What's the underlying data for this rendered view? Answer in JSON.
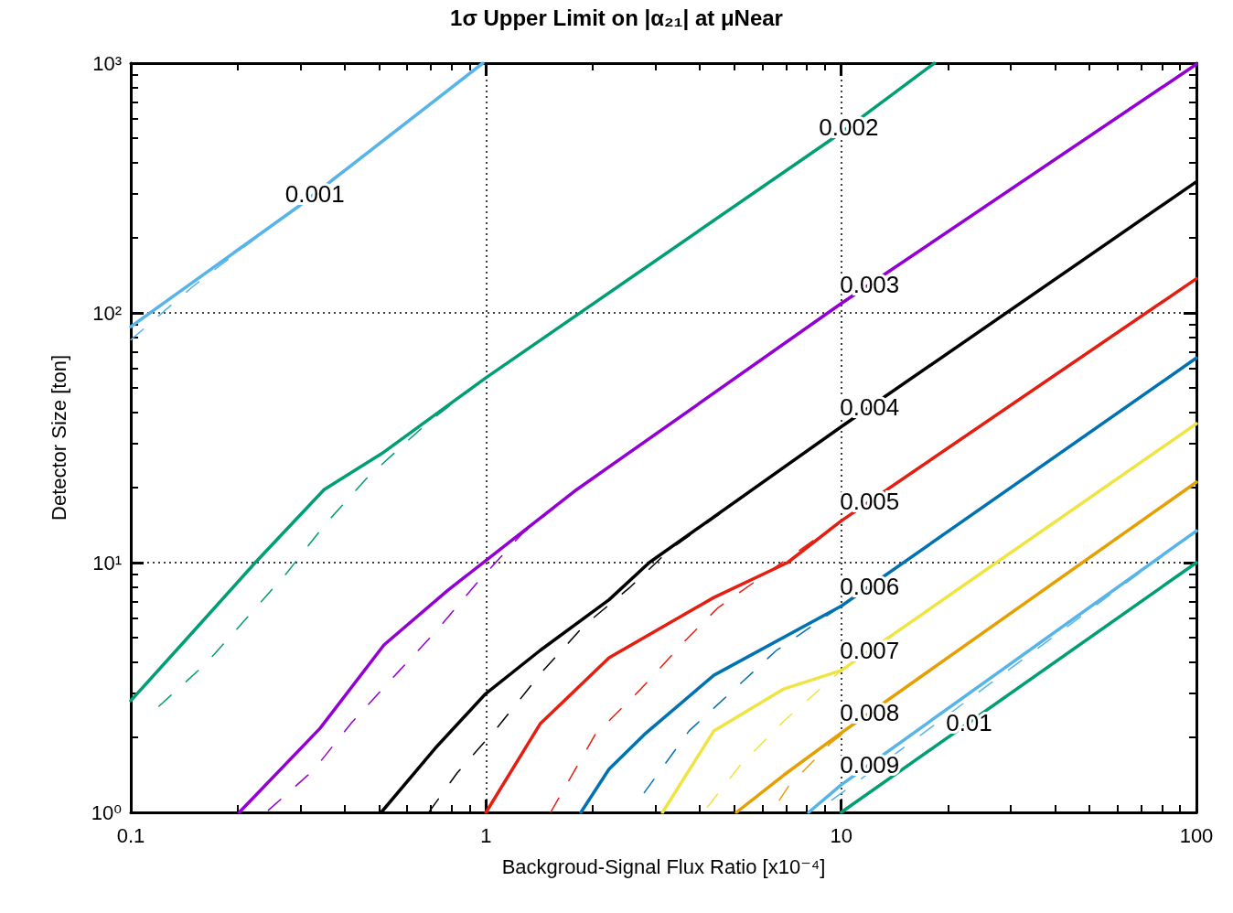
{
  "chart_data": {
    "type": "line",
    "title": "1σ Upper Limit on |α₂₁| at μNear",
    "xlabel": "Backgroud-Signal Flux Ratio [x10⁻⁴]",
    "ylabel": "Detector Size [ton]",
    "log": "xy",
    "xlim": [
      0.1,
      100
    ],
    "xticks": [
      0.1,
      1,
      10,
      100
    ],
    "ylim": [
      1,
      1000
    ],
    "yticks": [
      {
        "value": 1,
        "label": "10⁰"
      },
      {
        "value": 10,
        "label": "10¹"
      },
      {
        "value": 100,
        "label": "10²"
      },
      {
        "value": 1000,
        "label": "10³"
      }
    ],
    "grid": true,
    "legend": false,
    "marker": "none",
    "line_style": "solid",
    "series": [
      {
        "name": "0.001",
        "color": "#56b4e9",
        "x": [
          0.1,
          0.3,
          0.98
        ],
        "values": [
          88,
          270,
          1000
        ]
      },
      {
        "color": "#56b4e9",
        "line_style": "dashed",
        "x": [
          0.1,
          0.15,
          0.98
        ],
        "values": [
          78,
          128,
          1000
        ]
      },
      {
        "name": "0.002",
        "color": "#009e73",
        "x": [
          0.1,
          0.15,
          0.224,
          0.35,
          0.516,
          1,
          10,
          18.3
        ],
        "values": [
          2.8,
          5.3,
          10,
          19.6,
          27.7,
          55,
          527,
          1000
        ]
      },
      {
        "color": "#009e73",
        "line_style": "dashed",
        "x": [
          0.12,
          0.162,
          0.212,
          0.275,
          0.352,
          0.459,
          0.613,
          0.69,
          1,
          10,
          18.3
        ],
        "values": [
          2.66,
          3.92,
          6.0,
          9.1,
          14.2,
          21.6,
          31.5,
          36.6,
          55,
          527,
          1000
        ]
      },
      {
        "name": "0.003",
        "color": "#9400d3",
        "x": [
          0.202,
          0.341,
          0.516,
          0.78,
          1,
          1.8,
          10,
          100
        ],
        "values": [
          1,
          2.17,
          4.68,
          7.74,
          10.2,
          19.6,
          109,
          990
        ]
      },
      {
        "color": "#9400d3",
        "line_style": "dashed",
        "x": [
          0.244,
          0.326,
          0.42,
          0.571,
          0.719,
          0.937,
          1.26,
          1.8,
          10,
          100
        ],
        "values": [
          1.02,
          1.47,
          2.3,
          3.7,
          5.26,
          8.2,
          13.0,
          19.6,
          109,
          990
        ]
      },
      {
        "name": "0.004",
        "color": "#000000",
        "x": [
          0.507,
          0.718,
          0.994,
          1.42,
          2.22,
          2.88,
          10,
          100
        ],
        "values": [
          1,
          1.8,
          2.97,
          4.45,
          7.1,
          10,
          35,
          335
        ]
      },
      {
        "color": "#000000",
        "line_style": "dashed",
        "x": [
          0.69,
          0.83,
          1.08,
          1.44,
          1.89,
          2.54,
          3.3,
          10,
          100
        ],
        "values": [
          1,
          1.44,
          2.2,
          3.66,
          5.6,
          7.95,
          11.3,
          35,
          335
        ]
      },
      {
        "name": "0.005",
        "color": "#e51e10",
        "x": [
          1,
          1.42,
          2.22,
          4.38,
          7.06,
          10,
          100
        ],
        "values": [
          1,
          2.26,
          4.16,
          7.25,
          10,
          14.7,
          137
        ]
      },
      {
        "color": "#e51e10",
        "line_style": "dashed",
        "x": [
          1.52,
          2.03,
          2.73,
          3.58,
          4.5,
          10,
          100
        ],
        "values": [
          1.0,
          2.05,
          3.12,
          4.76,
          6.6,
          14.7,
          137
        ]
      },
      {
        "name": "0.006",
        "color": "#0072b2",
        "x": [
          1.85,
          2.22,
          2.79,
          4.38,
          10,
          100
        ],
        "values": [
          1,
          1.49,
          2.05,
          3.54,
          6.7,
          66
        ]
      },
      {
        "color": "#0072b2",
        "line_style": "dashed",
        "x": [
          2.79,
          3.73,
          4.95,
          6.57,
          10,
          100
        ],
        "values": [
          1.2,
          2.12,
          3.07,
          4.45,
          6.7,
          66
        ]
      },
      {
        "name": "0.007",
        "color": "#f0e442",
        "x": [
          3.14,
          4.38,
          6.89,
          10,
          100
        ],
        "values": [
          1,
          2.12,
          3.12,
          3.7,
          36
        ]
      },
      {
        "color": "#f0e442",
        "line_style": "dashed",
        "x": [
          4.2,
          5.19,
          6.89,
          10,
          100
        ],
        "values": [
          1.05,
          1.54,
          2.32,
          3.7,
          36
        ]
      },
      {
        "name": "0.008",
        "color": "#e69f00",
        "x": [
          5.07,
          6.89,
          10,
          100
        ],
        "values": [
          1,
          1.41,
          2.08,
          21
        ]
      },
      {
        "color": "#e69f00",
        "line_style": "dashed",
        "x": [
          6.7,
          7.1,
          9.4,
          13,
          100
        ],
        "values": [
          1.12,
          1.27,
          1.91,
          2.7,
          21
        ]
      },
      {
        "name": "0.009",
        "color": "#56b4e9",
        "x": [
          8.1,
          10,
          100
        ],
        "values": [
          1,
          1.29,
          13.4
        ]
      },
      {
        "color": "#56b4e9",
        "line_style": "dashed",
        "x": [
          9.4,
          12.5,
          100
        ],
        "values": [
          1.12,
          1.5,
          13.4
        ]
      },
      {
        "name": "0.01",
        "color": "#009e73",
        "x": [
          10,
          100
        ],
        "values": [
          1,
          10
        ]
      }
    ]
  }
}
